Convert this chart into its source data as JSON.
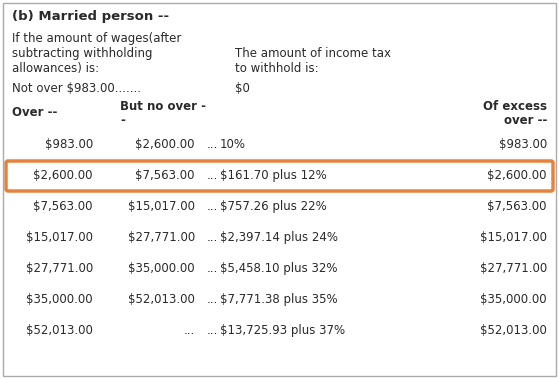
{
  "title": "(b) Married person --",
  "intro_line1": "If the amount of wages(after",
  "intro_line2": "subtracting withholding",
  "intro_line3": "allowances) is:",
  "intro_right_line1": "The amount of income tax",
  "intro_right_line2": "to withhold is:",
  "not_over_label": "Not over $983.00.......",
  "not_over_value": "$0",
  "header_col0": "Over --",
  "header_col1_line1": "But no over -",
  "header_col1_line2": "-",
  "header_col3_line1": "Of excess",
  "header_col3_line2": "over --",
  "rows": [
    [
      "$983.00",
      "$2,600.00",
      "...",
      "10%",
      "$983.00"
    ],
    [
      "$2,600.00",
      "$7,563.00",
      "...",
      "$161.70 plus 12%",
      "$2,600.00"
    ],
    [
      "$7,563.00",
      "$15,017.00",
      "...",
      "$757.26 plus 22%",
      "$7,563.00"
    ],
    [
      "$15,017.00",
      "$27,771.00",
      "...",
      "$2,397.14 plus 24%",
      "$15,017.00"
    ],
    [
      "$27,771.00",
      "$35,000.00",
      "...",
      "$5,458.10 plus 32%",
      "$27,771.00"
    ],
    [
      "$35,000.00",
      "$52,013.00",
      "...",
      "$7,771.38 plus 35%",
      "$35,000.00"
    ],
    [
      "$52,013.00",
      "",
      "...",
      "$13,725.93 plus 37%",
      "$52,013.00"
    ]
  ],
  "last_row_col1_dots": "...",
  "highlight_row": 1,
  "highlight_color": "#E8813A",
  "bg_color": "#FFFFFF",
  "text_color": "#2a2a2a",
  "border_color": "#999999",
  "outer_border_color": "#aaaaaa"
}
